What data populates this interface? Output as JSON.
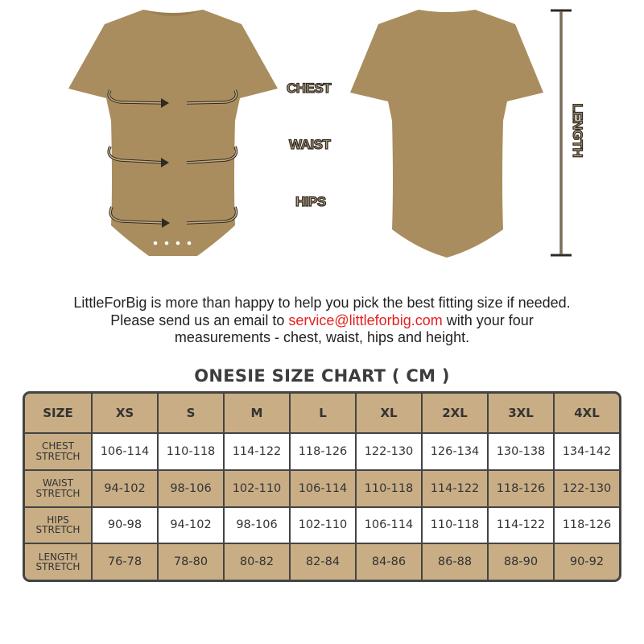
{
  "garment_labels": {
    "chest": "CHEST",
    "waist": "WAIST",
    "hips": "HIPS",
    "length": "LENGTH"
  },
  "colors": {
    "garment": "#a98d5e",
    "table_tan": "#c8ad85",
    "border": "#444444",
    "email": "#e5201f"
  },
  "message": {
    "line1": "LittleForBig is more than happy to help you pick the best fitting size if needed.",
    "line2_before": "Please send us an email to ",
    "email": "service@littleforbig.com",
    "line2_after": " with your four",
    "line3": "measurements - chest, waist, hips and height."
  },
  "table": {
    "title": "ONESIE SIZE CHART ( CM )",
    "header": [
      "SIZE",
      "XS",
      "S",
      "M",
      "L",
      "XL",
      "2XL",
      "3XL",
      "4XL"
    ],
    "rows": [
      {
        "label": "CHEST\nSTRETCH",
        "values": [
          "106-114",
          "110-118",
          "114-122",
          "118-126",
          "122-130",
          "126-134",
          "130-138",
          "134-142"
        ]
      },
      {
        "label": "WAIST\nSTRETCH",
        "values": [
          "94-102",
          "98-106",
          "102-110",
          "106-114",
          "110-118",
          "114-122",
          "118-126",
          "122-130"
        ]
      },
      {
        "label": "HIPS\nSTRETCH",
        "values": [
          "90-98",
          "94-102",
          "98-106",
          "102-110",
          "106-114",
          "110-118",
          "114-122",
          "118-126"
        ]
      },
      {
        "label": "LENGTH\nSTRETCH",
        "values": [
          "76-78",
          "78-80",
          "80-82",
          "82-84",
          "84-86",
          "86-88",
          "88-90",
          "90-92"
        ]
      }
    ]
  }
}
